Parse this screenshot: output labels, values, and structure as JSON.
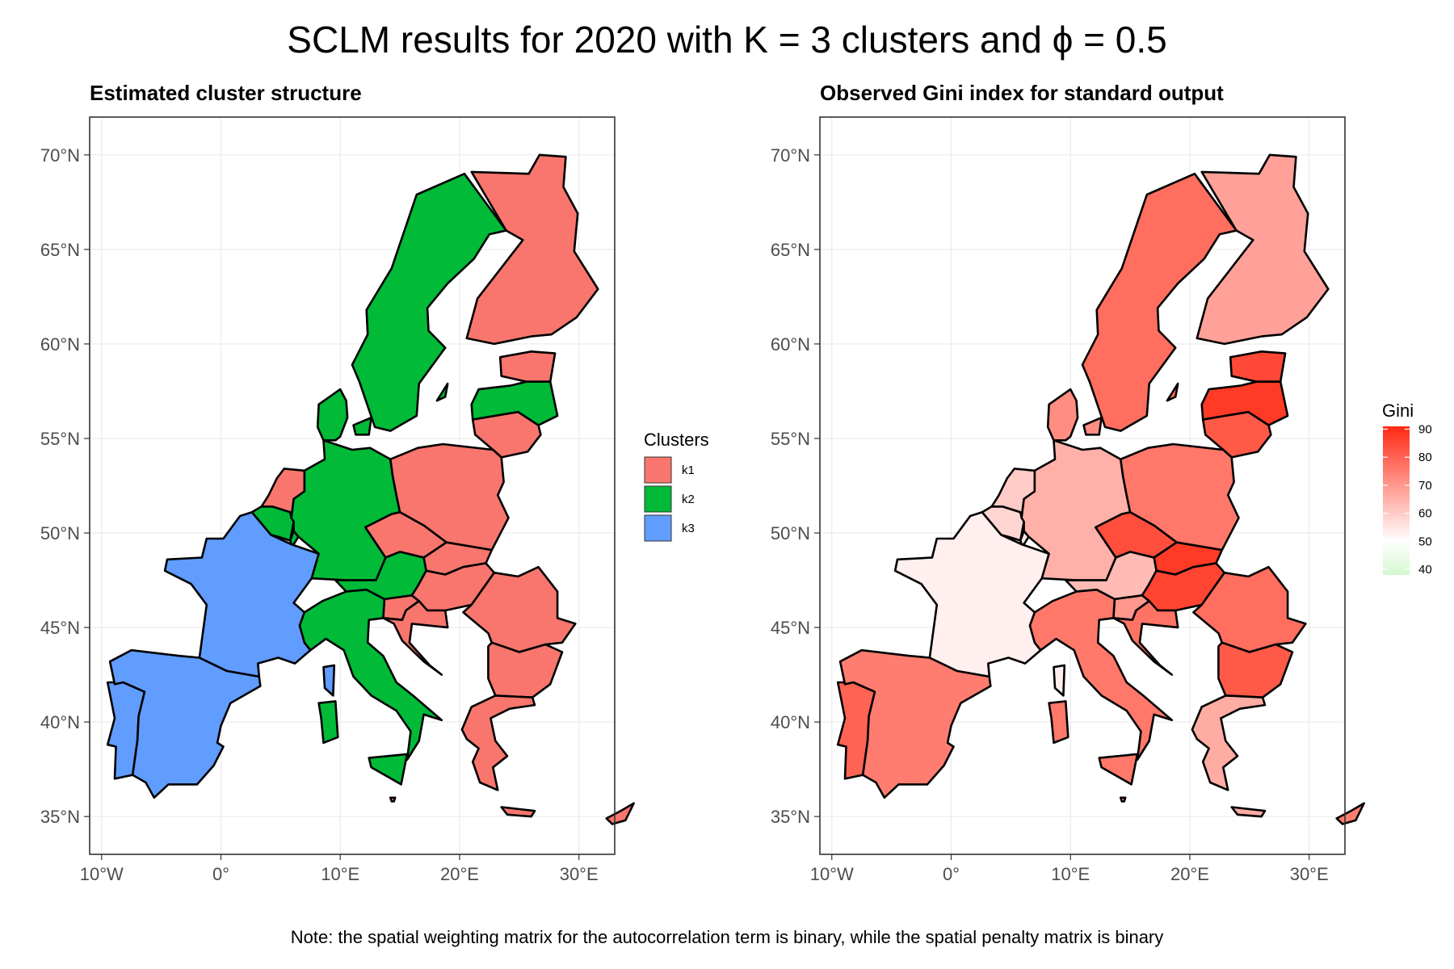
{
  "title": "SCLM results for 2020 with K = 3 clusters and ϕ = 0.5",
  "footnote": "Note: the spatial weighting matrix for the autocorrelation term is binary, while the spatial penalty matrix is binary",
  "panels": {
    "left": {
      "title": "Estimated cluster structure",
      "legend": {
        "title": "Clusters",
        "items": [
          {
            "label": "k1",
            "color": "#F8766D"
          },
          {
            "label": "k2",
            "color": "#00BA38"
          },
          {
            "label": "k3",
            "color": "#619CFF"
          }
        ]
      }
    },
    "right": {
      "title": "Observed Gini index for standard output",
      "legend": {
        "title": "Gini",
        "ticks": [
          "90",
          "80",
          "70",
          "60",
          "50",
          "40"
        ],
        "colors": {
          "low": "#d4f7cf",
          "mid": "#ffffff",
          "high": "#ff2a14"
        }
      }
    }
  },
  "axes": {
    "x_ticks": [
      "10°W",
      "0°",
      "10°E",
      "20°E",
      "30°E"
    ],
    "y_ticks": [
      "70°N",
      "65°N",
      "60°N",
      "55°N",
      "50°N",
      "45°N",
      "40°N",
      "35°N"
    ]
  },
  "chart_data": [
    {
      "type": "map",
      "title": "Estimated cluster structure",
      "xlim": [
        -11,
        33
      ],
      "ylim": [
        33,
        72
      ],
      "legend_position": "right",
      "countries": [
        {
          "name": "Portugal",
          "cluster": "k3"
        },
        {
          "name": "Spain",
          "cluster": "k3"
        },
        {
          "name": "France",
          "cluster": "k3"
        },
        {
          "name": "Belgium",
          "cluster": "k2"
        },
        {
          "name": "Netherlands",
          "cluster": "k1"
        },
        {
          "name": "Luxembourg",
          "cluster": "k2"
        },
        {
          "name": "Germany",
          "cluster": "k2"
        },
        {
          "name": "Denmark",
          "cluster": "k2"
        },
        {
          "name": "Sweden",
          "cluster": "k2"
        },
        {
          "name": "Finland",
          "cluster": "k1"
        },
        {
          "name": "Estonia",
          "cluster": "k1"
        },
        {
          "name": "Latvia",
          "cluster": "k2"
        },
        {
          "name": "Lithuania",
          "cluster": "k1"
        },
        {
          "name": "Poland",
          "cluster": "k1"
        },
        {
          "name": "Czechia",
          "cluster": "k1"
        },
        {
          "name": "Slovakia",
          "cluster": "k1"
        },
        {
          "name": "Austria",
          "cluster": "k2"
        },
        {
          "name": "Hungary",
          "cluster": "k1"
        },
        {
          "name": "Slovenia",
          "cluster": "k1"
        },
        {
          "name": "Croatia",
          "cluster": "k1"
        },
        {
          "name": "Romania",
          "cluster": "k1"
        },
        {
          "name": "Bulgaria",
          "cluster": "k1"
        },
        {
          "name": "Italy",
          "cluster": "k2"
        },
        {
          "name": "Greece",
          "cluster": "k1"
        },
        {
          "name": "Cyprus",
          "cluster": "k1"
        },
        {
          "name": "Malta",
          "cluster": "k1"
        }
      ]
    },
    {
      "type": "map",
      "title": "Observed Gini index for standard output",
      "xlim": [
        -11,
        33
      ],
      "ylim": [
        33,
        72
      ],
      "color_scale": {
        "name": "Gini",
        "min": 38,
        "max": 91
      },
      "legend_position": "right",
      "countries": [
        {
          "name": "Portugal",
          "gini": 80
        },
        {
          "name": "Spain",
          "gini": 75
        },
        {
          "name": "France",
          "gini": 53
        },
        {
          "name": "Belgium",
          "gini": 58
        },
        {
          "name": "Netherlands",
          "gini": 60
        },
        {
          "name": "Luxembourg",
          "gini": 55
        },
        {
          "name": "Germany",
          "gini": 65
        },
        {
          "name": "Denmark",
          "gini": 72
        },
        {
          "name": "Sweden",
          "gini": 78
        },
        {
          "name": "Finland",
          "gini": 68
        },
        {
          "name": "Estonia",
          "gini": 85
        },
        {
          "name": "Latvia",
          "gini": 88
        },
        {
          "name": "Lithuania",
          "gini": 82
        },
        {
          "name": "Poland",
          "gini": 76
        },
        {
          "name": "Czechia",
          "gini": 84
        },
        {
          "name": "Slovakia",
          "gini": 88
        },
        {
          "name": "Austria",
          "gini": 63
        },
        {
          "name": "Hungary",
          "gini": 86
        },
        {
          "name": "Slovenia",
          "gini": 70
        },
        {
          "name": "Croatia",
          "gini": 77
        },
        {
          "name": "Romania",
          "gini": 78
        },
        {
          "name": "Bulgaria",
          "gini": 82
        },
        {
          "name": "Italy",
          "gini": 76
        },
        {
          "name": "Greece",
          "gini": 66
        },
        {
          "name": "Cyprus",
          "gini": 75
        },
        {
          "name": "Malta",
          "gini": 72
        }
      ]
    }
  ]
}
